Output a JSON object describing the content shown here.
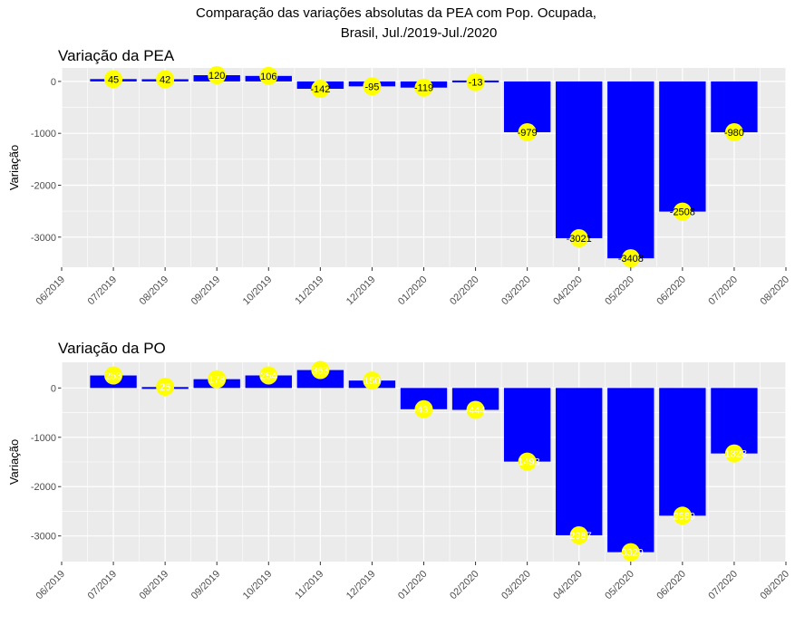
{
  "title_line1": "Comparação das variações absolutas da PEA com Pop. Ocupada,",
  "title_line2": "Brasil, Jul./2019-Jul./2020",
  "colors": {
    "bar": "#0000ff",
    "marker": "#ffff00",
    "panel": "#ebebeb",
    "grid": "#ffffff"
  },
  "chart_data": [
    {
      "type": "bar",
      "title": "Variação da PEA",
      "ylabel": "Variação",
      "xlabel": "",
      "x_ticks": [
        "06/2019",
        "07/2019",
        "08/2019",
        "09/2019",
        "10/2019",
        "11/2019",
        "12/2019",
        "01/2020",
        "02/2020",
        "03/2020",
        "04/2020",
        "05/2020",
        "06/2020",
        "07/2020",
        "08/2020"
      ],
      "categories": [
        "07/2019",
        "08/2019",
        "09/2019",
        "10/2019",
        "11/2019",
        "12/2019",
        "01/2020",
        "02/2020",
        "03/2020",
        "04/2020",
        "05/2020",
        "06/2020",
        "07/2020"
      ],
      "values": [
        45,
        42,
        120,
        106,
        -142,
        -95,
        -119,
        -13,
        -979,
        -3021,
        -3408,
        -2508,
        -980
      ],
      "data_labels": [
        "45",
        "42",
        "120",
        "106",
        "-142",
        "-95",
        "-119",
        "-13",
        "-979",
        "-3021",
        "-3408",
        "-2508",
        "-980"
      ],
      "label_color": "#000000",
      "ylim": [
        -3580,
        260
      ],
      "y_ticks": [
        0,
        -1000,
        -2000,
        -3000
      ]
    },
    {
      "type": "bar",
      "title": "Variação da PO",
      "ylabel": "Variação",
      "xlabel": "",
      "x_ticks": [
        "06/2019",
        "07/2019",
        "08/2019",
        "09/2019",
        "10/2019",
        "11/2019",
        "12/2019",
        "01/2020",
        "02/2020",
        "03/2020",
        "04/2020",
        "05/2020",
        "06/2020",
        "07/2020",
        "08/2020"
      ],
      "categories": [
        "07/2019",
        "08/2019",
        "09/2019",
        "10/2019",
        "11/2019",
        "12/2019",
        "01/2020",
        "02/2020",
        "03/2020",
        "04/2020",
        "05/2020",
        "06/2020",
        "07/2020"
      ],
      "values": [
        253,
        25,
        178,
        254,
        363,
        150,
        -431,
        -444,
        -1493,
        -2987,
        -3329,
        -2589,
        -1328
      ],
      "data_labels": [
        "253",
        "25",
        "178",
        "254",
        "363",
        "150",
        "-431",
        "-444",
        "-1493",
        "-2987",
        "-3329",
        "-2589",
        "-1328"
      ],
      "label_color": "#ffffff",
      "ylim": [
        -3520,
        520
      ],
      "y_ticks": [
        0,
        -1000,
        -2000,
        -3000
      ]
    }
  ]
}
